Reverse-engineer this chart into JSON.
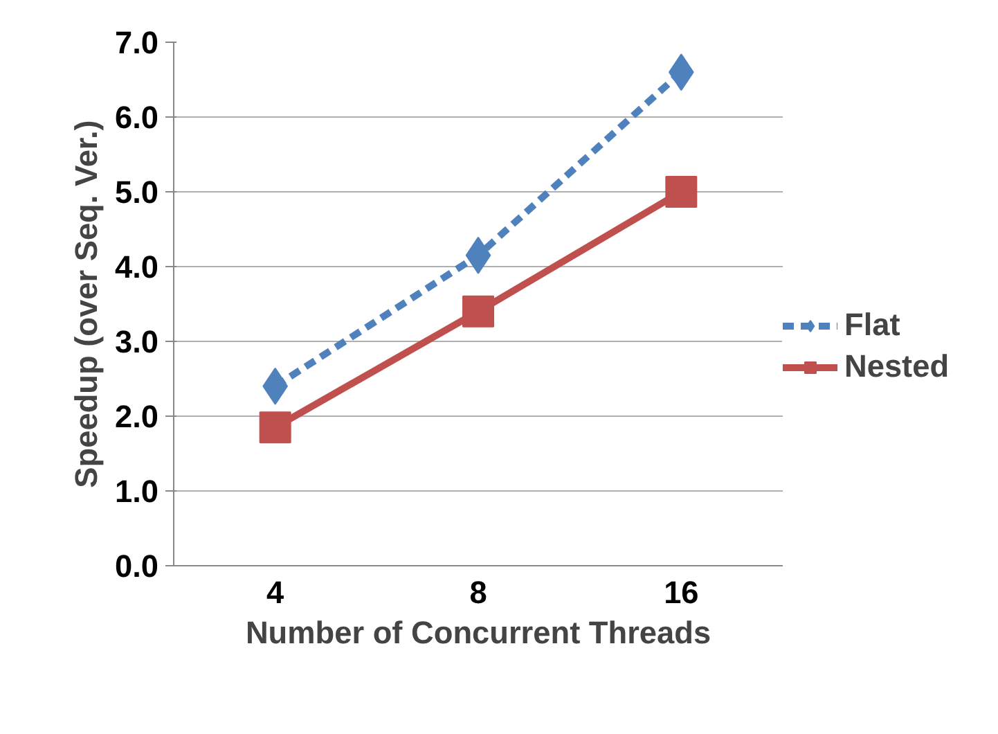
{
  "chart_data": {
    "type": "line",
    "xlabel": "Number of Concurrent Threads",
    "ylabel": "Speedup (over Seq. Ver.)",
    "categories": [
      "4",
      "8",
      "16"
    ],
    "series": [
      {
        "name": "Flat",
        "color": "#4f81bd",
        "values": [
          2.4,
          4.15,
          6.6
        ],
        "marker": "diamond",
        "line_style": "dashed"
      },
      {
        "name": "Nested",
        "color": "#c0504d",
        "values": [
          1.85,
          3.4,
          5.0
        ],
        "marker": "square",
        "line_style": "solid"
      }
    ],
    "ylim": [
      0,
      7
    ],
    "yticks": [
      {
        "value": 0,
        "label": "0.0"
      },
      {
        "value": 1,
        "label": "1.0"
      },
      {
        "value": 2,
        "label": "2.0"
      },
      {
        "value": 3,
        "label": "3.0"
      },
      {
        "value": 4,
        "label": "4.0"
      },
      {
        "value": 5,
        "label": "5.0"
      },
      {
        "value": 6,
        "label": "6.0"
      },
      {
        "value": 7,
        "label": "7.0"
      }
    ],
    "grid": "y",
    "legend": "right"
  }
}
